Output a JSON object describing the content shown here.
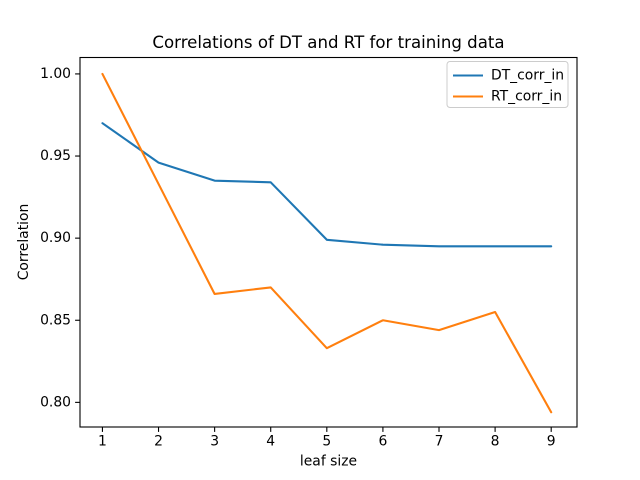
{
  "colors": {
    "dt_line": "#1f77b4",
    "rt_line": "#ff7f0e",
    "axis": "#000000",
    "legend_border": "#cccccc",
    "background": "#ffffff"
  },
  "chart_data": {
    "type": "line",
    "title": "Correlations of DT and RT for training data",
    "xlabel": "leaf size",
    "ylabel": "Correlation",
    "x": [
      1,
      2,
      3,
      4,
      5,
      6,
      7,
      8,
      9
    ],
    "series": [
      {
        "name": "DT_corr_in",
        "color": "#1f77b4",
        "values": [
          0.97,
          0.946,
          0.935,
          0.934,
          0.899,
          0.896,
          0.895,
          0.895,
          0.895
        ]
      },
      {
        "name": "RT_corr_in",
        "color": "#ff7f0e",
        "values": [
          1.0,
          0.933,
          0.866,
          0.87,
          0.833,
          0.85,
          0.844,
          0.855,
          0.794
        ]
      }
    ],
    "xticks": [
      1,
      2,
      3,
      4,
      5,
      6,
      7,
      8,
      9
    ],
    "yticks": [
      0.8,
      0.85,
      0.9,
      0.95,
      1.0
    ],
    "xlim": [
      0.6,
      9.46
    ],
    "ylim": [
      0.785,
      1.01
    ],
    "grid": false,
    "legend_position": "upper right"
  }
}
